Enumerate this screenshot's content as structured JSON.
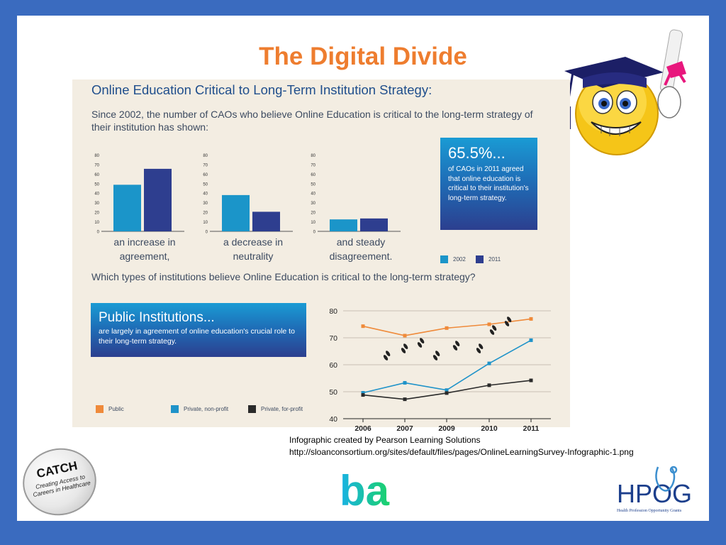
{
  "slide": {
    "title": "The Digital Divide",
    "infographic": {
      "heading": "Online Education Critical to Long-Term Institution Strategy:",
      "intro": "Since 2002, the number of CAOs who believe Online Education is critical to the long-term strategy of their institution has shown:",
      "question": "Which types of institutions believe Online Education is critical to the long-term strategy?",
      "stat_box": {
        "value": "65.5%...",
        "text": "of CAOs in 2011 agreed that online education is critical to their institution's long-term strategy."
      },
      "public_box": {
        "title": "Public Institutions...",
        "text": "are largely in agreement of online education's crucial role to their long-term strategy."
      }
    },
    "credit": {
      "line1": "Infographic created by Pearson Learning Solutions",
      "line2": "http://sloanconsortium.org/sites/default/files/pages/OnlineLearningSurvey-Infographic-1.png"
    },
    "logos": {
      "catch_title": "CATCH",
      "catch_sub": "Creating Access to Careers in Healthcare",
      "ba": "ba",
      "hpog": "HPOG",
      "hpog_tag": "Health Profession Opportunity Grants"
    }
  },
  "colors": {
    "series_2002": "#1b95c9",
    "series_2011": "#2e3e8f",
    "public": "#ef8a3a",
    "private_nonprofit": "#1f93c9",
    "private_forprofit": "#2a2a2a",
    "title": "#ee7d2f"
  },
  "chart_data": [
    {
      "type": "bar",
      "categories": [
        "an increase in agreement,"
      ],
      "series": [
        {
          "name": "2002",
          "values": [
            48.8
          ]
        },
        {
          "name": "2011",
          "values": [
            65.5
          ]
        }
      ],
      "yticks": [
        0,
        10,
        20,
        30,
        40,
        50,
        60,
        70,
        80
      ],
      "ylim": [
        0,
        80
      ],
      "label": "an increase in agreement,"
    },
    {
      "type": "bar",
      "categories": [
        "a decrease in neutrality"
      ],
      "series": [
        {
          "name": "2002",
          "values": [
            38
          ]
        },
        {
          "name": "2011",
          "values": [
            20.5
          ]
        }
      ],
      "yticks": [
        0,
        10,
        20,
        30,
        40,
        50,
        60,
        70,
        80
      ],
      "ylim": [
        0,
        80
      ],
      "label": "a decrease in neutrality"
    },
    {
      "type": "bar",
      "categories": [
        "and steady disagreement."
      ],
      "series": [
        {
          "name": "2002",
          "values": [
            12.5
          ]
        },
        {
          "name": "2011",
          "values": [
            13.5
          ]
        }
      ],
      "yticks": [
        0,
        10,
        20,
        30,
        40,
        50,
        60,
        70,
        80
      ],
      "ylim": [
        0,
        80
      ],
      "label": "and steady disagreement.",
      "legend": [
        "2002",
        "2011"
      ]
    },
    {
      "type": "line",
      "x": [
        "2006",
        "2007",
        "2009",
        "2010",
        "2011"
      ],
      "series": [
        {
          "name": "Public",
          "values": [
            74.3,
            70.8,
            73.6,
            75,
            77
          ]
        },
        {
          "name": "Private, non-profit",
          "values": [
            49.6,
            53.3,
            50.6,
            60.5,
            69.1
          ]
        },
        {
          "name": "Private, for-profit",
          "values": [
            48.8,
            47.2,
            49.5,
            52.4,
            54.2
          ]
        }
      ],
      "yticks": [
        40,
        50,
        60,
        70,
        80
      ],
      "ylim": [
        40,
        80
      ],
      "legend": [
        "Public",
        "Private, non-profit",
        "Private, for-profit"
      ]
    }
  ]
}
